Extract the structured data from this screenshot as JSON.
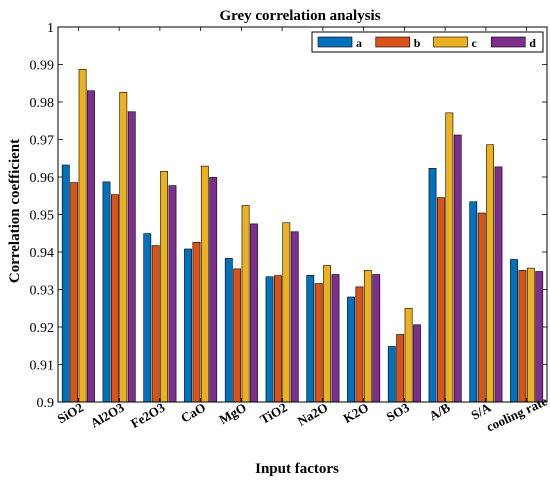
{
  "chart_data": {
    "type": "bar",
    "title": "Grey correlation analysis",
    "xlabel": "Input factors",
    "ylabel": "Correlation coefficient",
    "ylim": [
      0.9,
      1.0
    ],
    "yticks": [
      0.9,
      0.91,
      0.92,
      0.93,
      0.94,
      0.95,
      0.96,
      0.97,
      0.98,
      0.99,
      1.0
    ],
    "ytick_labels": [
      "0.9",
      "0.91",
      "0.92",
      "0.93",
      "0.94",
      "0.95",
      "0.96",
      "0.97",
      "0.98",
      "0.99",
      "1"
    ],
    "categories": [
      "SiO2",
      "Al2O3",
      "Fe2O3",
      "CaO",
      "MgO",
      "TiO2",
      "Na2O",
      "K2O",
      "SO3",
      "A/B",
      "S/A",
      "cooling rate"
    ],
    "legend_position": "top-right",
    "grid": false,
    "series": [
      {
        "name": "a",
        "color": "#0072BD",
        "values": [
          0.9632,
          0.9587,
          0.9449,
          0.9408,
          0.9383,
          0.9334,
          0.9338,
          0.928,
          0.9148,
          0.9623,
          0.9534,
          0.938
        ]
      },
      {
        "name": "b",
        "color": "#D95319",
        "values": [
          0.9585,
          0.9553,
          0.9417,
          0.9426,
          0.9355,
          0.9337,
          0.9316,
          0.9307,
          0.918,
          0.9545,
          0.9504,
          0.9351
        ]
      },
      {
        "name": "c",
        "color": "#EDB120",
        "values": [
          0.9887,
          0.9826,
          0.9615,
          0.9629,
          0.9524,
          0.9478,
          0.9364,
          0.9351,
          0.925,
          0.9771,
          0.9686,
          0.9357
        ]
      },
      {
        "name": "d",
        "color": "#7E2F8E",
        "values": [
          0.983,
          0.9774,
          0.9577,
          0.9599,
          0.9475,
          0.9454,
          0.934,
          0.934,
          0.9206,
          0.9712,
          0.9627,
          0.9348
        ]
      }
    ]
  }
}
